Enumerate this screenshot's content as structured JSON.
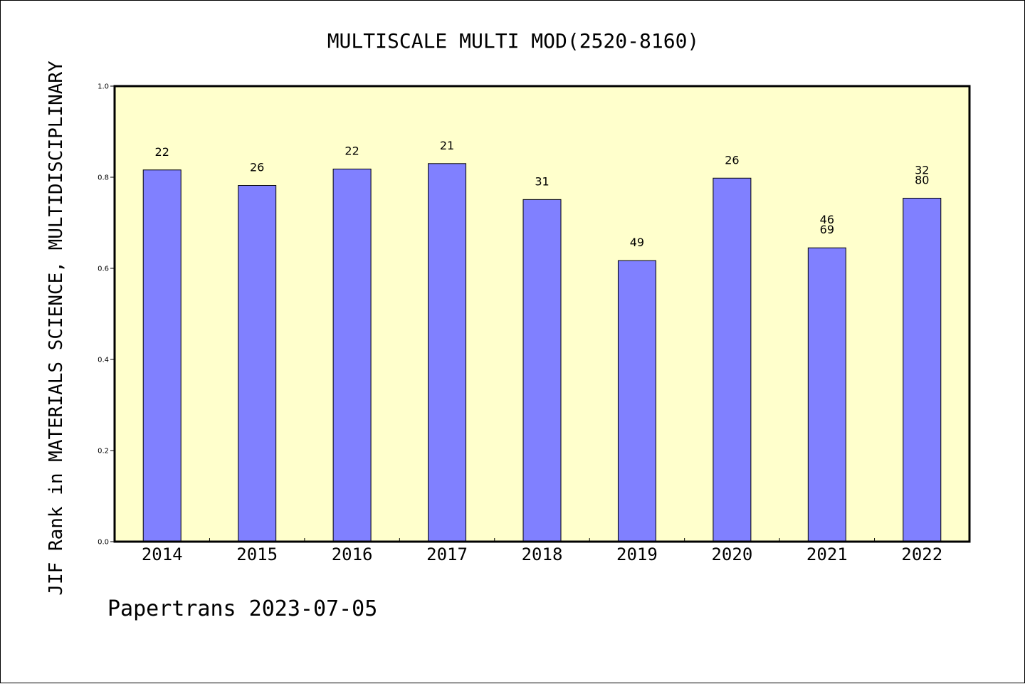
{
  "chart_data": {
    "type": "bar",
    "title": "MULTISCALE MULTI MOD(2520-8160)",
    "ylabel": "JIF Rank in MATERIALS SCIENCE, MULTIDISCIPLINARY",
    "xlabel": "",
    "ylim": [
      0,
      1.0
    ],
    "yticks": [
      "0.0",
      "0.2",
      "0.4",
      "0.6",
      "0.8",
      "1.0"
    ],
    "grid": false,
    "categories": [
      "2014",
      "2015",
      "2016",
      "2017",
      "2018",
      "2019",
      "2020",
      "2021",
      "2022"
    ],
    "values": [
      0.816,
      0.782,
      0.818,
      0.83,
      0.751,
      0.617,
      0.798,
      0.645,
      0.754
    ],
    "data_labels": [
      [
        "22"
      ],
      [
        "26"
      ],
      [
        "22"
      ],
      [
        "21"
      ],
      [
        "31"
      ],
      [
        "49"
      ],
      [
        "26"
      ],
      [
        "46",
        "69"
      ],
      [
        "32",
        "80"
      ]
    ],
    "colors": {
      "bar_fill": "#8080ff",
      "bar_stroke": "#000000",
      "plot_background": "#ffffcc",
      "page_background": "#ffffff"
    }
  },
  "footer": {
    "text": "Papertrans 2023-07-05"
  }
}
